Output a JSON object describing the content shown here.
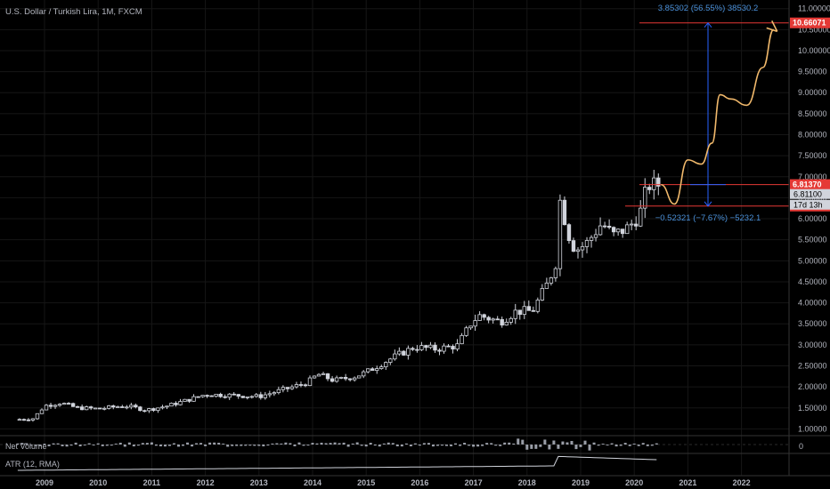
{
  "header": {
    "symbol_title": "U.S. Dollar / Turkish Lira, 1M, FXCM"
  },
  "colors": {
    "background": "#000000",
    "candle": "#d1d4dc",
    "red_line": "#e53935",
    "measure_blue": "#2962ff",
    "measure_text": "#4a90d9",
    "projection": "#f0b86b",
    "grid": "#161616"
  },
  "chart_data": {
    "type": "candlestick",
    "y_axis": {
      "min": 1.0,
      "max": 11.0,
      "ticks": [
        "1.00000",
        "1.50000",
        "2.00000",
        "2.50000",
        "3.00000",
        "3.50000",
        "4.00000",
        "4.50000",
        "5.00000",
        "5.50000",
        "6.00000",
        "6.50000",
        "7.00000",
        "7.50000",
        "8.00000",
        "8.50000",
        "9.00000",
        "9.50000",
        "10.00000",
        "10.50000",
        "11.00000"
      ]
    },
    "x_axis": {
      "ticks": [
        "2009",
        "2010",
        "2011",
        "2012",
        "2013",
        "2014",
        "2015",
        "2016",
        "2017",
        "2018",
        "2019",
        "2020",
        "2021",
        "2022"
      ]
    },
    "anchor_points": [
      {
        "t": 2008.45,
        "v": 1.22
      },
      {
        "t": 2008.8,
        "v": 1.25
      },
      {
        "t": 2009.0,
        "v": 1.55
      },
      {
        "t": 2009.3,
        "v": 1.62
      },
      {
        "t": 2009.6,
        "v": 1.5
      },
      {
        "t": 2010.0,
        "v": 1.48
      },
      {
        "t": 2010.5,
        "v": 1.55
      },
      {
        "t": 2010.9,
        "v": 1.45
      },
      {
        "t": 2011.3,
        "v": 1.55
      },
      {
        "t": 2011.7,
        "v": 1.7
      },
      {
        "t": 2012.0,
        "v": 1.82
      },
      {
        "t": 2012.5,
        "v": 1.8
      },
      {
        "t": 2013.0,
        "v": 1.77
      },
      {
        "t": 2013.5,
        "v": 1.95
      },
      {
        "t": 2013.9,
        "v": 2.1
      },
      {
        "t": 2014.1,
        "v": 2.3
      },
      {
        "t": 2014.4,
        "v": 2.15
      },
      {
        "t": 2014.8,
        "v": 2.25
      },
      {
        "t": 2015.0,
        "v": 2.35
      },
      {
        "t": 2015.5,
        "v": 2.7
      },
      {
        "t": 2015.9,
        "v": 2.95
      },
      {
        "t": 2016.3,
        "v": 2.9
      },
      {
        "t": 2016.7,
        "v": 2.98
      },
      {
        "t": 2016.95,
        "v": 3.5
      },
      {
        "t": 2017.1,
        "v": 3.7
      },
      {
        "t": 2017.5,
        "v": 3.55
      },
      {
        "t": 2017.8,
        "v": 3.8
      },
      {
        "t": 2018.1,
        "v": 3.8
      },
      {
        "t": 2018.4,
        "v": 4.5
      },
      {
        "t": 2018.55,
        "v": 5.0
      },
      {
        "t": 2018.62,
        "v": 6.5
      },
      {
        "t": 2018.75,
        "v": 5.7
      },
      {
        "t": 2018.9,
        "v": 5.25
      },
      {
        "t": 2019.1,
        "v": 5.4
      },
      {
        "t": 2019.4,
        "v": 5.9
      },
      {
        "t": 2019.6,
        "v": 5.6
      },
      {
        "t": 2019.9,
        "v": 5.8
      },
      {
        "t": 2020.1,
        "v": 6.1
      },
      {
        "t": 2020.25,
        "v": 6.8
      },
      {
        "t": 2020.45,
        "v": 6.81
      }
    ],
    "price_lines": [
      {
        "value": 10.66071,
        "label": "10.66071"
      },
      {
        "value": 6.8137,
        "label": "6.81370"
      },
      {
        "value": 6.30185,
        "label": "6.30185"
      }
    ],
    "current_price": {
      "value": 6.811,
      "label": "6.81100",
      "countdown": "17d 13h"
    },
    "measure_up": "3.85302 (56.55%) 38530.2",
    "measure_down": "−0.52321 (−7.67%) −5232.1",
    "projection_path": [
      {
        "t": 2020.5,
        "v": 6.81
      },
      {
        "t": 2020.75,
        "v": 6.35
      },
      {
        "t": 2021.0,
        "v": 7.4
      },
      {
        "t": 2021.25,
        "v": 7.3
      },
      {
        "t": 2021.45,
        "v": 7.8
      },
      {
        "t": 2021.6,
        "v": 8.95
      },
      {
        "t": 2021.8,
        "v": 8.85
      },
      {
        "t": 2022.1,
        "v": 8.7
      },
      {
        "t": 2022.4,
        "v": 9.6
      },
      {
        "t": 2022.6,
        "v": 10.5
      }
    ]
  },
  "volume_pane": {
    "label": "Net Volume",
    "scale_tick": "0"
  },
  "atr_pane": {
    "label": "ATR (12, RMA)"
  }
}
